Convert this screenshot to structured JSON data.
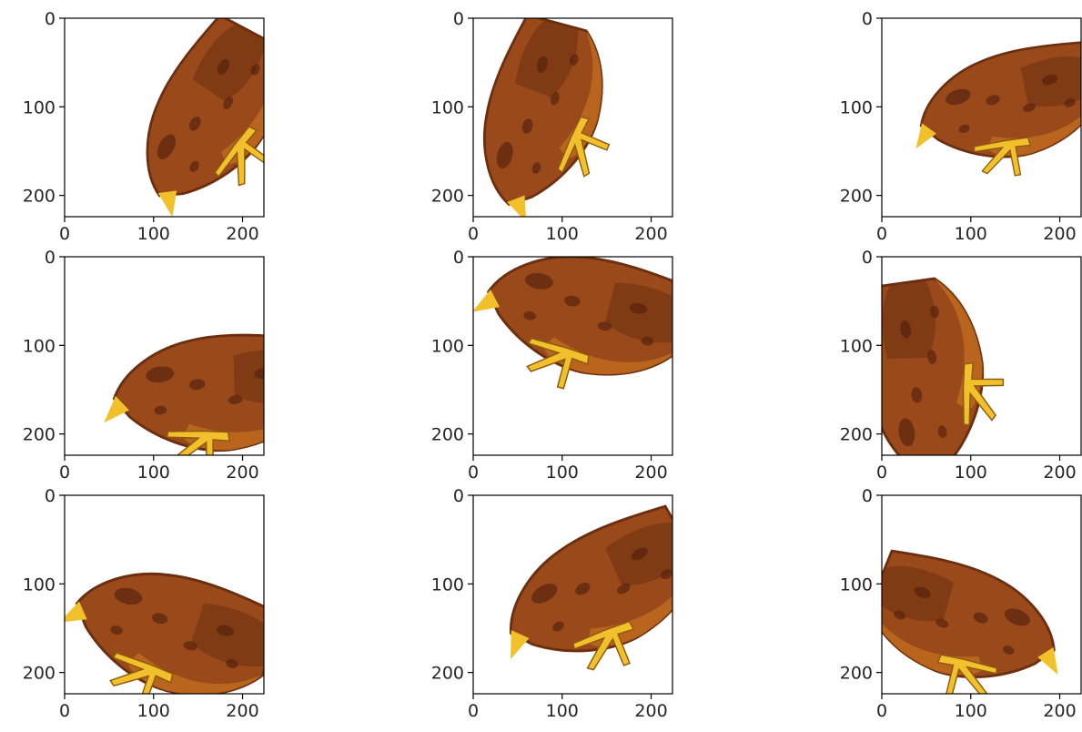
{
  "figure": {
    "type": "image-grid",
    "rows": 3,
    "cols": 3,
    "subplot_image_description": "augmented (rotated / flipped / shifted) photo of a brown hen with yellow feet on white background",
    "axes": {
      "x_ticks": [
        "0",
        "100",
        "200"
      ],
      "y_ticks": [
        "0",
        "100",
        "200"
      ],
      "xlim": [
        0,
        224
      ],
      "ylim": [
        224,
        0
      ]
    },
    "colors": {
      "background": "#ffffff",
      "axis": "#000000",
      "text": "#262626",
      "hen_dark": "#6b2f10",
      "hen_mid": "#9a4a1a",
      "hen_light": "#c06a20",
      "hen_spot": "#4e1e0c",
      "foot": "#f2c02a",
      "foot_edge": "#8a5a10"
    },
    "panels": [
      {
        "id": 1,
        "hen": {
          "cx": 160,
          "cy": 110,
          "rot": -62,
          "s": 1.0,
          "flip": 1
        }
      },
      {
        "id": 2,
        "hen": {
          "cx": 72,
          "cy": 110,
          "rot": -75,
          "s": 1.0,
          "flip": 1
        }
      },
      {
        "id": 3,
        "hen": {
          "cx": 140,
          "cy": 95,
          "rot": -18,
          "s": 0.95,
          "flip": 1
        }
      },
      {
        "id": 4,
        "hen": {
          "cx": 165,
          "cy": 150,
          "rot": -8,
          "s": 1.05,
          "flip": 1
        }
      },
      {
        "id": 5,
        "hen": {
          "cx": 125,
          "cy": 60,
          "rot": 8,
          "s": 1.05,
          "flip": 1
        }
      },
      {
        "id": 6,
        "hen": {
          "cx": 45,
          "cy": 140,
          "rot": -98,
          "s": 1.05,
          "flip": 1
        }
      },
      {
        "id": 7,
        "hen": {
          "cx": 120,
          "cy": 150,
          "rot": 12,
          "s": 1.05,
          "flip": 1
        }
      },
      {
        "id": 8,
        "hen": {
          "cx": 140,
          "cy": 105,
          "rot": -30,
          "s": 1.05,
          "flip": 1
        }
      },
      {
        "id": 9,
        "hen": {
          "cx": 95,
          "cy": 140,
          "rot": 22,
          "s": 1.0,
          "flip": -1
        }
      }
    ]
  }
}
